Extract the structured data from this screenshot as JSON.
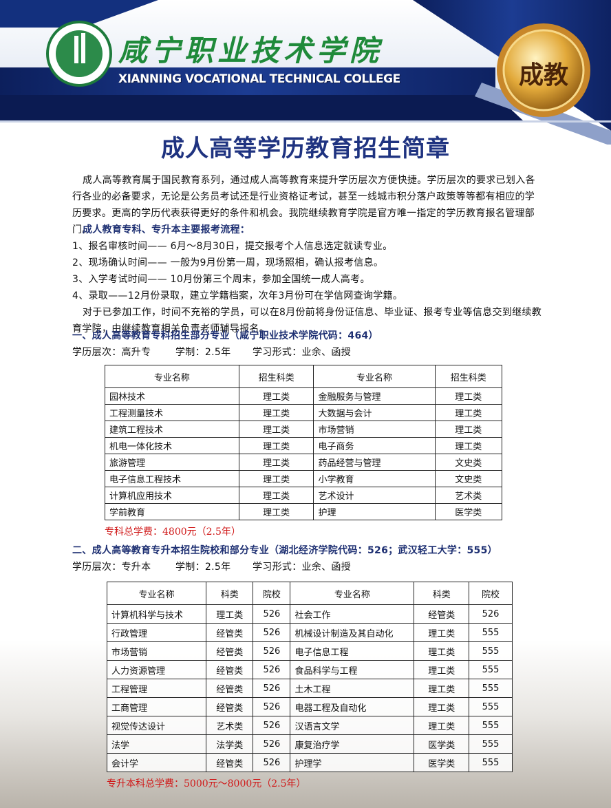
{
  "header": {
    "college_cn": "咸宁职业技术学院",
    "college_en": "XIANNING VOCATIONAL TECHNICAL COLLEGE",
    "badge": "成教"
  },
  "title": "成人高等学历教育招生简章",
  "intro": "成人高等教育属于国民教育系列，通过成人高等教育来提升学历层次方便快捷。学历层次的要求已划入各行各业的必备要求，无论是公务员考试还是行业资格证考试，甚至一线城市积分落户政策等等都有相应的学历要求。更高的学历代表获得更好的条件和机会。我院继续教育学院是官方唯一指定的学历教育报名管理部门。",
  "process": {
    "heading": "成人教育专科、专升本主要报考流程：",
    "steps": [
      "1、报名审核时间—— 6月～8月30日，提交报考个人信息选定就读专业。",
      "2、现场确认时间—— 一般为9月份第一周，现场照相，确认报考信息。",
      "3、入学考试时间—— 10月份第三个周末，参加全国统一成人高考。",
      "4、录取——12月份录取，建立学籍档案，次年3月份可在学信网查询学籍。"
    ],
    "note": "对于已参加工作，时间不充裕的学员，可以在8月份前将身份证信息、毕业证、报考专业等信息交到继续教育学院，由继续教育相关负责老师辅导报名。"
  },
  "section1": {
    "heading": "一、成人高等教育专科招生部分专业（咸宁职业技术学院代码：464）",
    "meta": [
      "学历层次：高升专",
      "学制：2.5年",
      "学习形式：业余、函授"
    ],
    "table": {
      "headers": [
        "专业名称",
        "招生科类",
        "专业名称",
        "招生科类"
      ],
      "rows": [
        [
          "园林技术",
          "理工类",
          "金融服务与管理",
          "理工类"
        ],
        [
          "工程测量技术",
          "理工类",
          "大数据与会计",
          "理工类"
        ],
        [
          "建筑工程技术",
          "理工类",
          "市场营销",
          "理工类"
        ],
        [
          "机电一体化技术",
          "理工类",
          "电子商务",
          "理工类"
        ],
        [
          "旅游管理",
          "理工类",
          "药品经营与管理",
          "文史类"
        ],
        [
          "电子信息工程技术",
          "理工类",
          "小学教育",
          "文史类"
        ],
        [
          "计算机应用技术",
          "理工类",
          "艺术设计",
          "艺术类"
        ],
        [
          "学前教育",
          "理工类",
          "护理",
          "医学类"
        ]
      ]
    },
    "fee": "专科总学费：4800元（2.5年）"
  },
  "section2": {
    "heading": "二、成人高等教育专升本招生院校和部分专业（湖北经济学院代码：526；武汉轻工大学：555）",
    "meta": [
      "学历层次：专升本",
      "学制：2.5年",
      "学习形式：业余、函授"
    ],
    "table": {
      "headers": [
        "专业名称",
        "科类",
        "院校",
        "专业名称",
        "科类",
        "院校"
      ],
      "rows": [
        [
          "计算机科学与技术",
          "理工类",
          "526",
          "社会工作",
          "经管类",
          "526"
        ],
        [
          "行政管理",
          "经管类",
          "526",
          "机械设计制造及其自动化",
          "理工类",
          "555"
        ],
        [
          "市场营销",
          "经管类",
          "526",
          "电子信息工程",
          "理工类",
          "555"
        ],
        [
          "人力资源管理",
          "经管类",
          "526",
          "食品科学与工程",
          "理工类",
          "555"
        ],
        [
          "工程管理",
          "经管类",
          "526",
          "土木工程",
          "理工类",
          "555"
        ],
        [
          "工商管理",
          "经管类",
          "526",
          "电器工程及自动化",
          "理工类",
          "555"
        ],
        [
          "视觉传达设计",
          "艺术类",
          "526",
          "汉语言文学",
          "理工类",
          "555"
        ],
        [
          "法学",
          "法学类",
          "526",
          "康复治疗学",
          "医学类",
          "555"
        ],
        [
          "会计学",
          "经管类",
          "526",
          "护理学",
          "医学类",
          "555"
        ]
      ]
    },
    "fee": "专升本科总学费：5000元～8000元（2.5年）"
  }
}
